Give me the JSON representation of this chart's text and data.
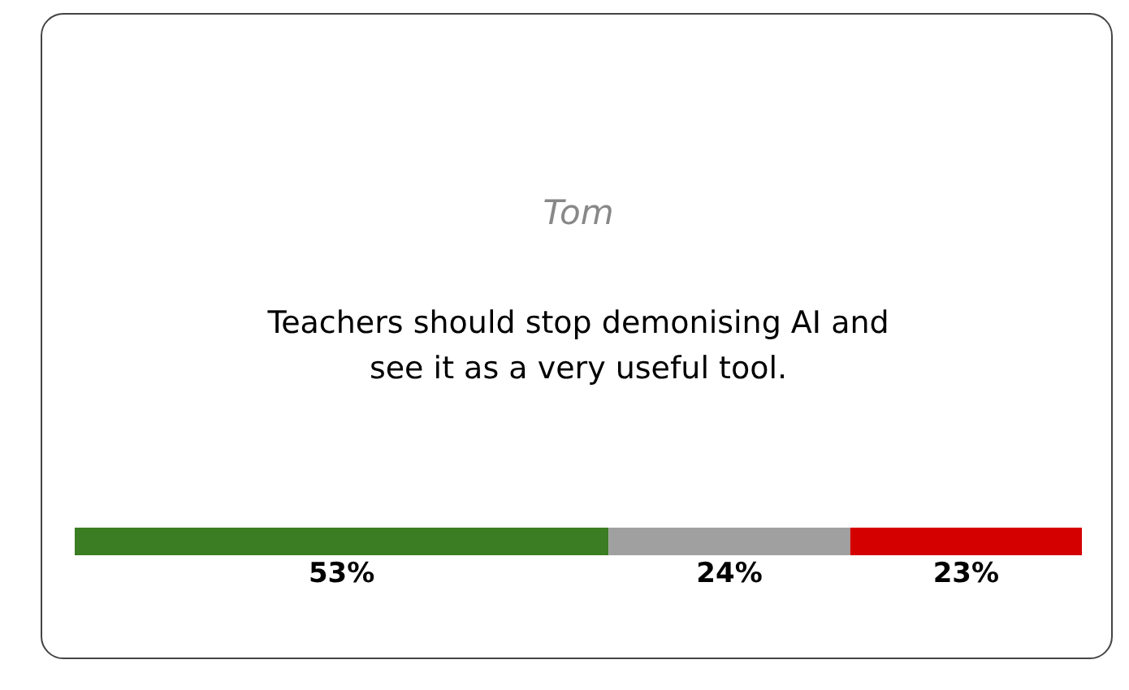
{
  "chart_data": {
    "type": "bar",
    "title": "Tom",
    "subtitle": "Teachers should stop demonising AI and see it as a very useful tool.",
    "categories": [
      null
    ],
    "stacked": true,
    "orientation": "horizontal",
    "xlim": [
      0,
      100
    ],
    "series": [
      {
        "color": "#3a7d22",
        "values": [
          53
        ],
        "value_labels": [
          "53%"
        ]
      },
      {
        "color": "#a0a0a0",
        "values": [
          24
        ],
        "value_labels": [
          "24%"
        ]
      },
      {
        "color": "#d40000",
        "values": [
          23
        ],
        "value_labels": [
          "23%"
        ]
      }
    ]
  }
}
